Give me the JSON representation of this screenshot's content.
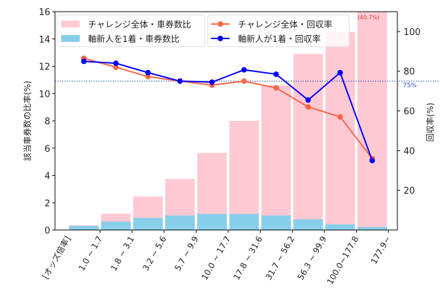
{
  "chart_data": {
    "type": "bar",
    "categories": [
      "1.0 ~ 1.7",
      "1.8 ~ 3.1",
      "3.2 ~ 5.6",
      "5.7 ~ 9.9",
      "10.0 ~ 17.7",
      "17.8 ~ 31.6",
      "31.7 ~ 56.2",
      "56.3 ~ 99.9",
      "100.0~177.8",
      "177.9~"
    ],
    "x_axis_title": "[オッズ倍率]",
    "ylabel_left": "該当車券数の比率(%)",
    "ylabel_right": "回収率(%)",
    "ylim_left": [
      0,
      16
    ],
    "ylim_right": [
      0,
      110
    ],
    "yticks_left": [
      0,
      2,
      4,
      6,
      8,
      10,
      12,
      14,
      16
    ],
    "yticks_right": [
      20,
      40,
      60,
      80,
      100
    ],
    "bar_series": [
      {
        "name": "チャレンジ全体・車券数比",
        "color": "#ffc9d3",
        "values": [
          0.35,
          1.2,
          2.45,
          3.75,
          5.65,
          8.0,
          10.6,
          12.9,
          14.5,
          40.7
        ]
      },
      {
        "name": "軸新人を1着・車券数比",
        "color": "#87ceeb",
        "values": [
          0.3,
          0.62,
          0.88,
          1.07,
          1.18,
          1.18,
          1.07,
          0.78,
          0.42,
          0.22
        ]
      }
    ],
    "line_series": [
      {
        "name": "チャレンジ全体・回収率",
        "color": "#ff6347",
        "values": [
          86.5,
          82.0,
          77.3,
          75.0,
          73.0,
          75.0,
          71.6,
          62.0,
          57.0,
          36.0
        ]
      },
      {
        "name": "軸新人が1着・回収率",
        "color": "#0000ff",
        "values": [
          85.0,
          84.0,
          79.3,
          75.0,
          74.5,
          80.7,
          78.5,
          65.5,
          79.3,
          35.0
        ]
      }
    ],
    "reference_line": {
      "value": 75,
      "label": "75%",
      "color": "#2a4fbf"
    },
    "annotation": {
      "text": "(40.7%)",
      "color": "#d04040"
    },
    "legend_placement": "top-left"
  }
}
